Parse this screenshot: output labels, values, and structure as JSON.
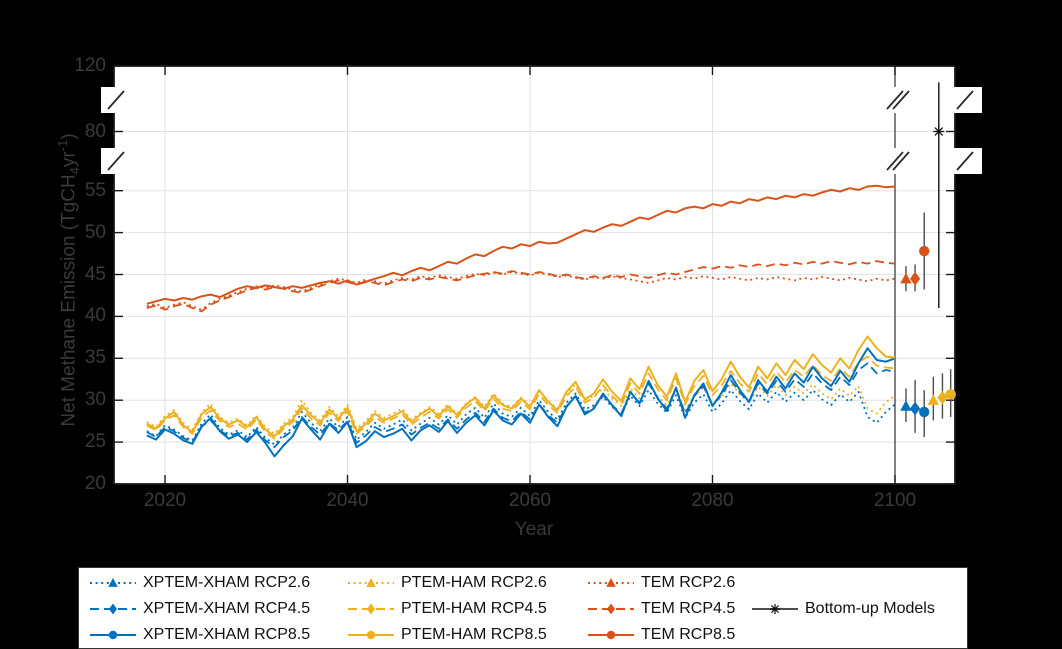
{
  "figure": {
    "background": "#000000",
    "plot_background": "#ffffff"
  },
  "axes": {
    "x_label": "Year",
    "y_label_parts": {
      "pre": "Net Methane Emission (TgCH",
      "sub": "4",
      "mid": "yr",
      "sup": "-1",
      "post": ")"
    },
    "x_ticks": [
      {
        "year": 2020,
        "label": "2020"
      },
      {
        "year": 2040,
        "label": "2040"
      },
      {
        "year": 2060,
        "label": "2060"
      },
      {
        "year": 2080,
        "label": "2080"
      },
      {
        "year": 2100,
        "label": "2100"
      }
    ],
    "y_ticks": [
      {
        "v": 20,
        "label": "20"
      },
      {
        "v": 25,
        "label": "25"
      },
      {
        "v": 30,
        "label": "30"
      },
      {
        "v": 35,
        "label": "35"
      },
      {
        "v": 40,
        "label": "40"
      },
      {
        "v": 45,
        "label": "45"
      },
      {
        "v": 50,
        "label": "50"
      },
      {
        "v": 55,
        "label": "55"
      },
      {
        "v": 80,
        "label": "80"
      },
      {
        "v": 120,
        "label": "120"
      }
    ],
    "y_grid_at": [
      25,
      30,
      35,
      40,
      45,
      50,
      55,
      80
    ],
    "x_grid_at": [
      2020,
      2040,
      2060,
      2080
    ],
    "separator_year": 2100,
    "axis_breaks_between": [
      [
        55,
        80
      ],
      [
        80,
        120
      ]
    ]
  },
  "colors": {
    "blue": "#0072BD",
    "gold": "#EDB120",
    "orange": "#D95319",
    "gray": "#4d4d4d",
    "black": "#111111"
  },
  "chart_data": {
    "type": "line",
    "title": "",
    "xlabel": "Year",
    "ylabel": "Net Methane Emission (TgCH4 yr-1)",
    "x_start": 2018,
    "x_step": 1,
    "x_end": 2100,
    "ylim_linear_region": [
      20,
      57
    ],
    "y_break_ticks": [
      80,
      120
    ],
    "series": [
      {
        "name": "XPTEM-XHAM RCP2.6",
        "color": "#0072BD",
        "dash": "dot",
        "marker": "triangle",
        "values": [
          26.3,
          25.7,
          27.0,
          26.5,
          25.7,
          25.2,
          27.2,
          28.3,
          26.7,
          25.9,
          26.4,
          25.6,
          26.8,
          25.5,
          24.7,
          25.9,
          26.7,
          28.6,
          27.3,
          26.3,
          27.8,
          26.8,
          28.0,
          25.3,
          26.2,
          27.3,
          26.6,
          27.1,
          27.7,
          26.4,
          27.2,
          27.9,
          27.1,
          28.2,
          27.1,
          28.3,
          29.1,
          27.9,
          29.6,
          28.4,
          28.0,
          29.1,
          28.1,
          30.0,
          28.6,
          27.7,
          29.7,
          30.8,
          28.9,
          29.4,
          30.4,
          29.2,
          28.3,
          30.5,
          29.3,
          31.2,
          29.6,
          28.5,
          30.6,
          27.9,
          29.7,
          30.7,
          28.6,
          29.6,
          31.2,
          29.9,
          28.9,
          30.8,
          29.7,
          31.0,
          29.8,
          30.9,
          30.0,
          31.2,
          30.1,
          29.4,
          30.7,
          29.8,
          31.0,
          28.0,
          27.3,
          28.6,
          29.5
        ]
      },
      {
        "name": "PTEM-HAM RCP2.6",
        "color": "#EDB120",
        "dash": "dot",
        "marker": "triangle",
        "values": [
          27.4,
          26.8,
          28.1,
          28.8,
          27.3,
          26.5,
          28.5,
          29.6,
          28.0,
          27.3,
          27.8,
          27.0,
          28.2,
          26.8,
          26.0,
          27.2,
          28.0,
          30.0,
          28.5,
          27.6,
          29.2,
          28.1,
          29.4,
          26.6,
          27.5,
          28.7,
          27.9,
          28.4,
          29.0,
          27.7,
          28.5,
          29.2,
          28.4,
          29.5,
          28.4,
          29.6,
          30.4,
          29.2,
          30.8,
          29.6,
          29.2,
          30.3,
          29.4,
          31.2,
          29.9,
          29.0,
          30.9,
          31.9,
          30.0,
          30.5,
          31.4,
          30.2,
          29.3,
          31.4,
          30.2,
          32.0,
          30.5,
          29.4,
          31.4,
          28.8,
          30.5,
          31.5,
          29.5,
          30.4,
          32.0,
          30.7,
          29.7,
          31.6,
          30.5,
          31.8,
          30.6,
          31.6,
          30.8,
          31.9,
          30.8,
          30.1,
          31.4,
          30.5,
          31.7,
          29.0,
          28.4,
          29.8,
          30.5
        ]
      },
      {
        "name": "XPTEM-XHAM RCP4.5",
        "color": "#0072BD",
        "dash": "dash",
        "marker": "diamond",
        "values": [
          26.2,
          25.6,
          26.8,
          26.3,
          25.5,
          25.0,
          26.9,
          27.6,
          26.4,
          25.7,
          26.1,
          25.3,
          26.5,
          25.2,
          24.4,
          25.6,
          26.4,
          28.0,
          26.8,
          25.9,
          27.3,
          26.4,
          27.5,
          24.9,
          25.8,
          26.8,
          26.2,
          26.6,
          27.1,
          25.9,
          26.7,
          27.3,
          26.6,
          27.7,
          26.6,
          27.7,
          28.5,
          27.4,
          29.0,
          27.9,
          27.5,
          28.6,
          27.7,
          29.5,
          28.2,
          27.3,
          29.3,
          30.4,
          28.5,
          29.1,
          30.6,
          29.4,
          28.4,
          30.9,
          29.7,
          32.0,
          30.2,
          29.0,
          31.4,
          28.4,
          30.5,
          31.7,
          29.4,
          30.6,
          32.4,
          30.9,
          29.8,
          32.0,
          30.8,
          32.3,
          31.0,
          32.5,
          31.6,
          33.2,
          32.0,
          31.2,
          32.8,
          31.8,
          33.6,
          34.4,
          33.2,
          33.6,
          33.4
        ]
      },
      {
        "name": "PTEM-HAM RCP4.5",
        "color": "#EDB120",
        "dash": "dash",
        "marker": "diamond",
        "values": [
          27.0,
          26.4,
          27.6,
          28.2,
          26.8,
          26.0,
          27.9,
          28.8,
          27.5,
          26.8,
          27.2,
          26.5,
          27.7,
          26.2,
          25.4,
          26.6,
          27.4,
          29.0,
          27.8,
          27.0,
          28.5,
          27.5,
          28.7,
          26.0,
          26.9,
          28.0,
          27.3,
          27.8,
          28.3,
          27.1,
          27.9,
          28.6,
          27.8,
          28.9,
          27.9,
          29.1,
          29.9,
          28.7,
          30.2,
          29.0,
          28.7,
          29.8,
          28.9,
          30.7,
          29.4,
          28.5,
          30.5,
          31.6,
          29.7,
          30.3,
          31.8,
          30.5,
          29.5,
          32.0,
          30.8,
          33.2,
          31.3,
          30.0,
          32.6,
          29.5,
          31.7,
          32.9,
          30.6,
          31.8,
          33.5,
          32.0,
          31.0,
          33.2,
          31.9,
          33.4,
          32.1,
          33.6,
          32.8,
          34.2,
          33.0,
          32.3,
          33.8,
          32.8,
          34.5,
          35.2,
          34.1,
          33.9,
          33.8
        ]
      },
      {
        "name": "XPTEM-XHAM RCP8.5",
        "color": "#0072BD",
        "dash": "solid",
        "marker": "circle",
        "values": [
          25.8,
          25.3,
          26.5,
          26.0,
          25.2,
          24.8,
          26.8,
          27.9,
          26.3,
          25.4,
          25.9,
          25.0,
          26.2,
          24.9,
          23.3,
          24.6,
          25.7,
          27.8,
          26.5,
          25.3,
          27.2,
          26.1,
          27.4,
          24.4,
          25.1,
          26.3,
          25.6,
          26.0,
          26.6,
          25.2,
          26.4,
          27.0,
          26.2,
          27.5,
          26.1,
          27.3,
          28.2,
          27.0,
          28.8,
          27.6,
          27.1,
          28.4,
          27.3,
          29.5,
          28.0,
          26.9,
          29.2,
          30.5,
          28.3,
          29.0,
          30.8,
          29.4,
          28.1,
          31.0,
          29.6,
          32.3,
          30.2,
          28.7,
          31.5,
          27.9,
          30.6,
          32.0,
          29.3,
          30.9,
          33.0,
          31.2,
          29.8,
          32.4,
          31.0,
          32.8,
          31.4,
          33.2,
          32.1,
          34.0,
          32.6,
          31.7,
          33.5,
          32.2,
          34.4,
          36.2,
          34.8,
          34.6,
          35.0
        ]
      },
      {
        "name": "PTEM-HAM RCP8.5",
        "color": "#EDB120",
        "dash": "solid",
        "marker": "circle",
        "values": [
          27.2,
          26.6,
          27.8,
          28.6,
          27.0,
          26.2,
          28.3,
          29.2,
          27.8,
          27.1,
          27.6,
          26.8,
          28.0,
          26.5,
          25.7,
          26.9,
          27.7,
          29.4,
          28.2,
          27.3,
          28.9,
          27.8,
          29.1,
          26.3,
          27.2,
          28.4,
          27.6,
          28.1,
          28.7,
          27.4,
          28.3,
          29.0,
          28.1,
          29.3,
          28.2,
          29.5,
          30.3,
          29.0,
          30.6,
          29.4,
          29.0,
          30.2,
          29.2,
          31.2,
          29.8,
          28.8,
          31.0,
          32.2,
          30.1,
          30.8,
          32.5,
          31.0,
          29.9,
          32.6,
          31.3,
          34.0,
          31.8,
          30.4,
          33.2,
          29.8,
          32.3,
          33.6,
          31.1,
          32.5,
          34.6,
          32.8,
          31.5,
          34.0,
          32.6,
          34.4,
          33.0,
          34.8,
          33.7,
          35.5,
          34.2,
          33.3,
          35.0,
          33.8,
          36.0,
          37.6,
          36.2,
          35.2,
          35.1
        ]
      },
      {
        "name": "TEM RCP2.6",
        "color": "#D95319",
        "dash": "dot",
        "marker": "triangle",
        "values": [
          41.2,
          41.5,
          41.0,
          41.4,
          41.7,
          41.2,
          40.8,
          41.6,
          42.1,
          42.5,
          42.9,
          43.3,
          43.6,
          43.4,
          43.7,
          43.5,
          43.2,
          43.0,
          43.4,
          43.8,
          44.2,
          44.5,
          44.3,
          44.0,
          44.4,
          44.2,
          43.9,
          44.3,
          44.6,
          44.4,
          44.8,
          44.6,
          44.9,
          44.7,
          44.5,
          44.8,
          45.1,
          44.9,
          45.2,
          45.0,
          45.3,
          45.1,
          44.9,
          45.2,
          45.0,
          44.7,
          44.9,
          44.6,
          44.4,
          44.7,
          44.5,
          44.8,
          44.6,
          44.4,
          44.2,
          44.0,
          44.3,
          44.6,
          44.4,
          44.7,
          44.5,
          44.8,
          44.6,
          44.4,
          44.7,
          44.5,
          44.3,
          44.6,
          44.4,
          44.7,
          44.5,
          44.3,
          44.6,
          44.4,
          44.7,
          44.5,
          44.3,
          44.6,
          44.4,
          44.2,
          44.5,
          44.3,
          44.5
        ]
      },
      {
        "name": "TEM RCP4.5",
        "color": "#D95319",
        "dash": "dash",
        "marker": "diamond",
        "values": [
          41.0,
          41.3,
          40.8,
          41.2,
          41.5,
          41.0,
          40.6,
          41.4,
          41.9,
          42.3,
          42.7,
          43.1,
          43.4,
          43.2,
          43.5,
          43.3,
          43.0,
          42.8,
          43.2,
          43.6,
          44.0,
          44.3,
          44.1,
          43.8,
          44.2,
          44.0,
          43.7,
          44.1,
          44.4,
          44.2,
          44.6,
          44.4,
          44.7,
          44.5,
          44.3,
          44.6,
          44.9,
          45.1,
          45.3,
          45.1,
          45.4,
          45.2,
          45.0,
          45.3,
          45.1,
          44.8,
          45.0,
          44.7,
          44.5,
          44.8,
          44.6,
          44.9,
          44.7,
          45.0,
          44.8,
          44.6,
          44.9,
          45.2,
          45.0,
          45.3,
          45.6,
          45.9,
          45.7,
          46.0,
          45.8,
          46.1,
          45.9,
          46.2,
          46.0,
          46.3,
          46.1,
          46.4,
          46.2,
          46.5,
          46.3,
          46.6,
          46.4,
          46.2,
          46.5,
          46.3,
          46.6,
          46.4,
          46.3
        ]
      },
      {
        "name": "TEM RCP8.5",
        "color": "#D95319",
        "dash": "solid",
        "marker": "circle",
        "values": [
          41.5,
          41.8,
          42.1,
          41.9,
          42.2,
          42.0,
          42.4,
          42.6,
          42.3,
          42.8,
          43.3,
          43.6,
          43.4,
          43.7,
          43.5,
          43.3,
          43.6,
          43.4,
          43.7,
          44.0,
          44.2,
          43.9,
          44.3,
          43.8,
          44.1,
          44.5,
          44.8,
          45.2,
          44.9,
          45.4,
          45.8,
          45.5,
          46.0,
          46.5,
          46.3,
          46.9,
          47.4,
          47.2,
          47.8,
          48.3,
          48.1,
          48.6,
          48.4,
          48.9,
          48.7,
          48.8,
          49.3,
          49.8,
          50.3,
          50.1,
          50.6,
          51.0,
          50.8,
          51.3,
          51.8,
          51.6,
          52.1,
          52.6,
          52.4,
          52.9,
          53.1,
          52.9,
          53.4,
          53.2,
          53.7,
          53.5,
          54.0,
          53.8,
          54.2,
          54.0,
          54.4,
          54.2,
          54.6,
          54.4,
          54.8,
          55.1,
          54.9,
          55.3,
          55.1,
          55.5,
          55.6,
          55.4,
          55.5
        ]
      }
    ],
    "summary_points": [
      {
        "series": "XPTEM-XHAM RCP2.6",
        "x": 2101.2,
        "mean": 29.3,
        "lo": 27.4,
        "hi": 31.4,
        "color": "#0072BD",
        "marker": "triangle"
      },
      {
        "series": "XPTEM-XHAM RCP4.5",
        "x": 2102.2,
        "mean": 29.0,
        "lo": 26.1,
        "hi": 32.4,
        "color": "#0072BD",
        "marker": "diamond"
      },
      {
        "series": "XPTEM-XHAM RCP8.5",
        "x": 2103.2,
        "mean": 28.6,
        "lo": 25.6,
        "hi": 31.2,
        "color": "#0072BD",
        "marker": "circle"
      },
      {
        "series": "PTEM-HAM RCP2.6",
        "x": 2104.2,
        "mean": 30.0,
        "lo": 27.6,
        "hi": 32.8,
        "color": "#EDB120",
        "marker": "triangle"
      },
      {
        "series": "PTEM-HAM RCP4.5",
        "x": 2105.2,
        "mean": 30.3,
        "lo": 27.8,
        "hi": 33.2,
        "color": "#EDB120",
        "marker": "diamond"
      },
      {
        "series": "PTEM-HAM RCP8.5",
        "x": 2106.1,
        "mean": 30.7,
        "lo": 28.0,
        "hi": 33.7,
        "color": "#EDB120",
        "marker": "circle"
      },
      {
        "series": "TEM RCP2.6",
        "x": 2101.2,
        "mean": 44.5,
        "lo": 43.0,
        "hi": 46.0,
        "color": "#D95319",
        "marker": "triangle"
      },
      {
        "series": "TEM RCP4.5",
        "x": 2102.2,
        "mean": 44.5,
        "lo": 43.0,
        "hi": 46.2,
        "color": "#D95319",
        "marker": "diamond"
      },
      {
        "series": "TEM RCP8.5",
        "x": 2103.2,
        "mean": 47.8,
        "lo": 43.2,
        "hi": 52.4,
        "color": "#D95319",
        "marker": "circle"
      },
      {
        "series": "Bottom-up Models",
        "x": 2104.8,
        "mean": 80,
        "lo": 41,
        "hi": 110,
        "color": "#111111",
        "marker": "asterisk"
      }
    ],
    "legend_position": "below"
  },
  "legend": {
    "items": [
      {
        "label": "XPTEM-XHAM RCP2.6",
        "color": "#0072BD",
        "dash": "dot",
        "marker": "triangle",
        "col": 0,
        "row": 0
      },
      {
        "label": "XPTEM-XHAM RCP4.5",
        "color": "#0072BD",
        "dash": "dash",
        "marker": "diamond",
        "col": 0,
        "row": 1
      },
      {
        "label": "XPTEM-XHAM RCP8.5",
        "color": "#0072BD",
        "dash": "solid",
        "marker": "circle",
        "col": 0,
        "row": 2
      },
      {
        "label": "PTEM-HAM RCP2.6",
        "color": "#EDB120",
        "dash": "dot",
        "marker": "triangle",
        "col": 1,
        "row": 0
      },
      {
        "label": "PTEM-HAM RCP4.5",
        "color": "#EDB120",
        "dash": "dash",
        "marker": "diamond",
        "col": 1,
        "row": 1
      },
      {
        "label": "PTEM-HAM RCP8.5",
        "color": "#EDB120",
        "dash": "solid",
        "marker": "circle",
        "col": 1,
        "row": 2
      },
      {
        "label": "TEM RCP2.6",
        "color": "#D95319",
        "dash": "dot",
        "marker": "triangle",
        "col": 2,
        "row": 0
      },
      {
        "label": "TEM RCP4.5",
        "color": "#D95319",
        "dash": "dash",
        "marker": "diamond",
        "col": 2,
        "row": 1
      },
      {
        "label": "TEM RCP8.5",
        "color": "#D95319",
        "dash": "solid",
        "marker": "circle",
        "col": 2,
        "row": 2
      },
      {
        "label": "Bottom-up Models",
        "color": "#4d4d4d",
        "dash": "solid",
        "marker": "asterisk",
        "col": 3,
        "row": 1
      }
    ]
  }
}
